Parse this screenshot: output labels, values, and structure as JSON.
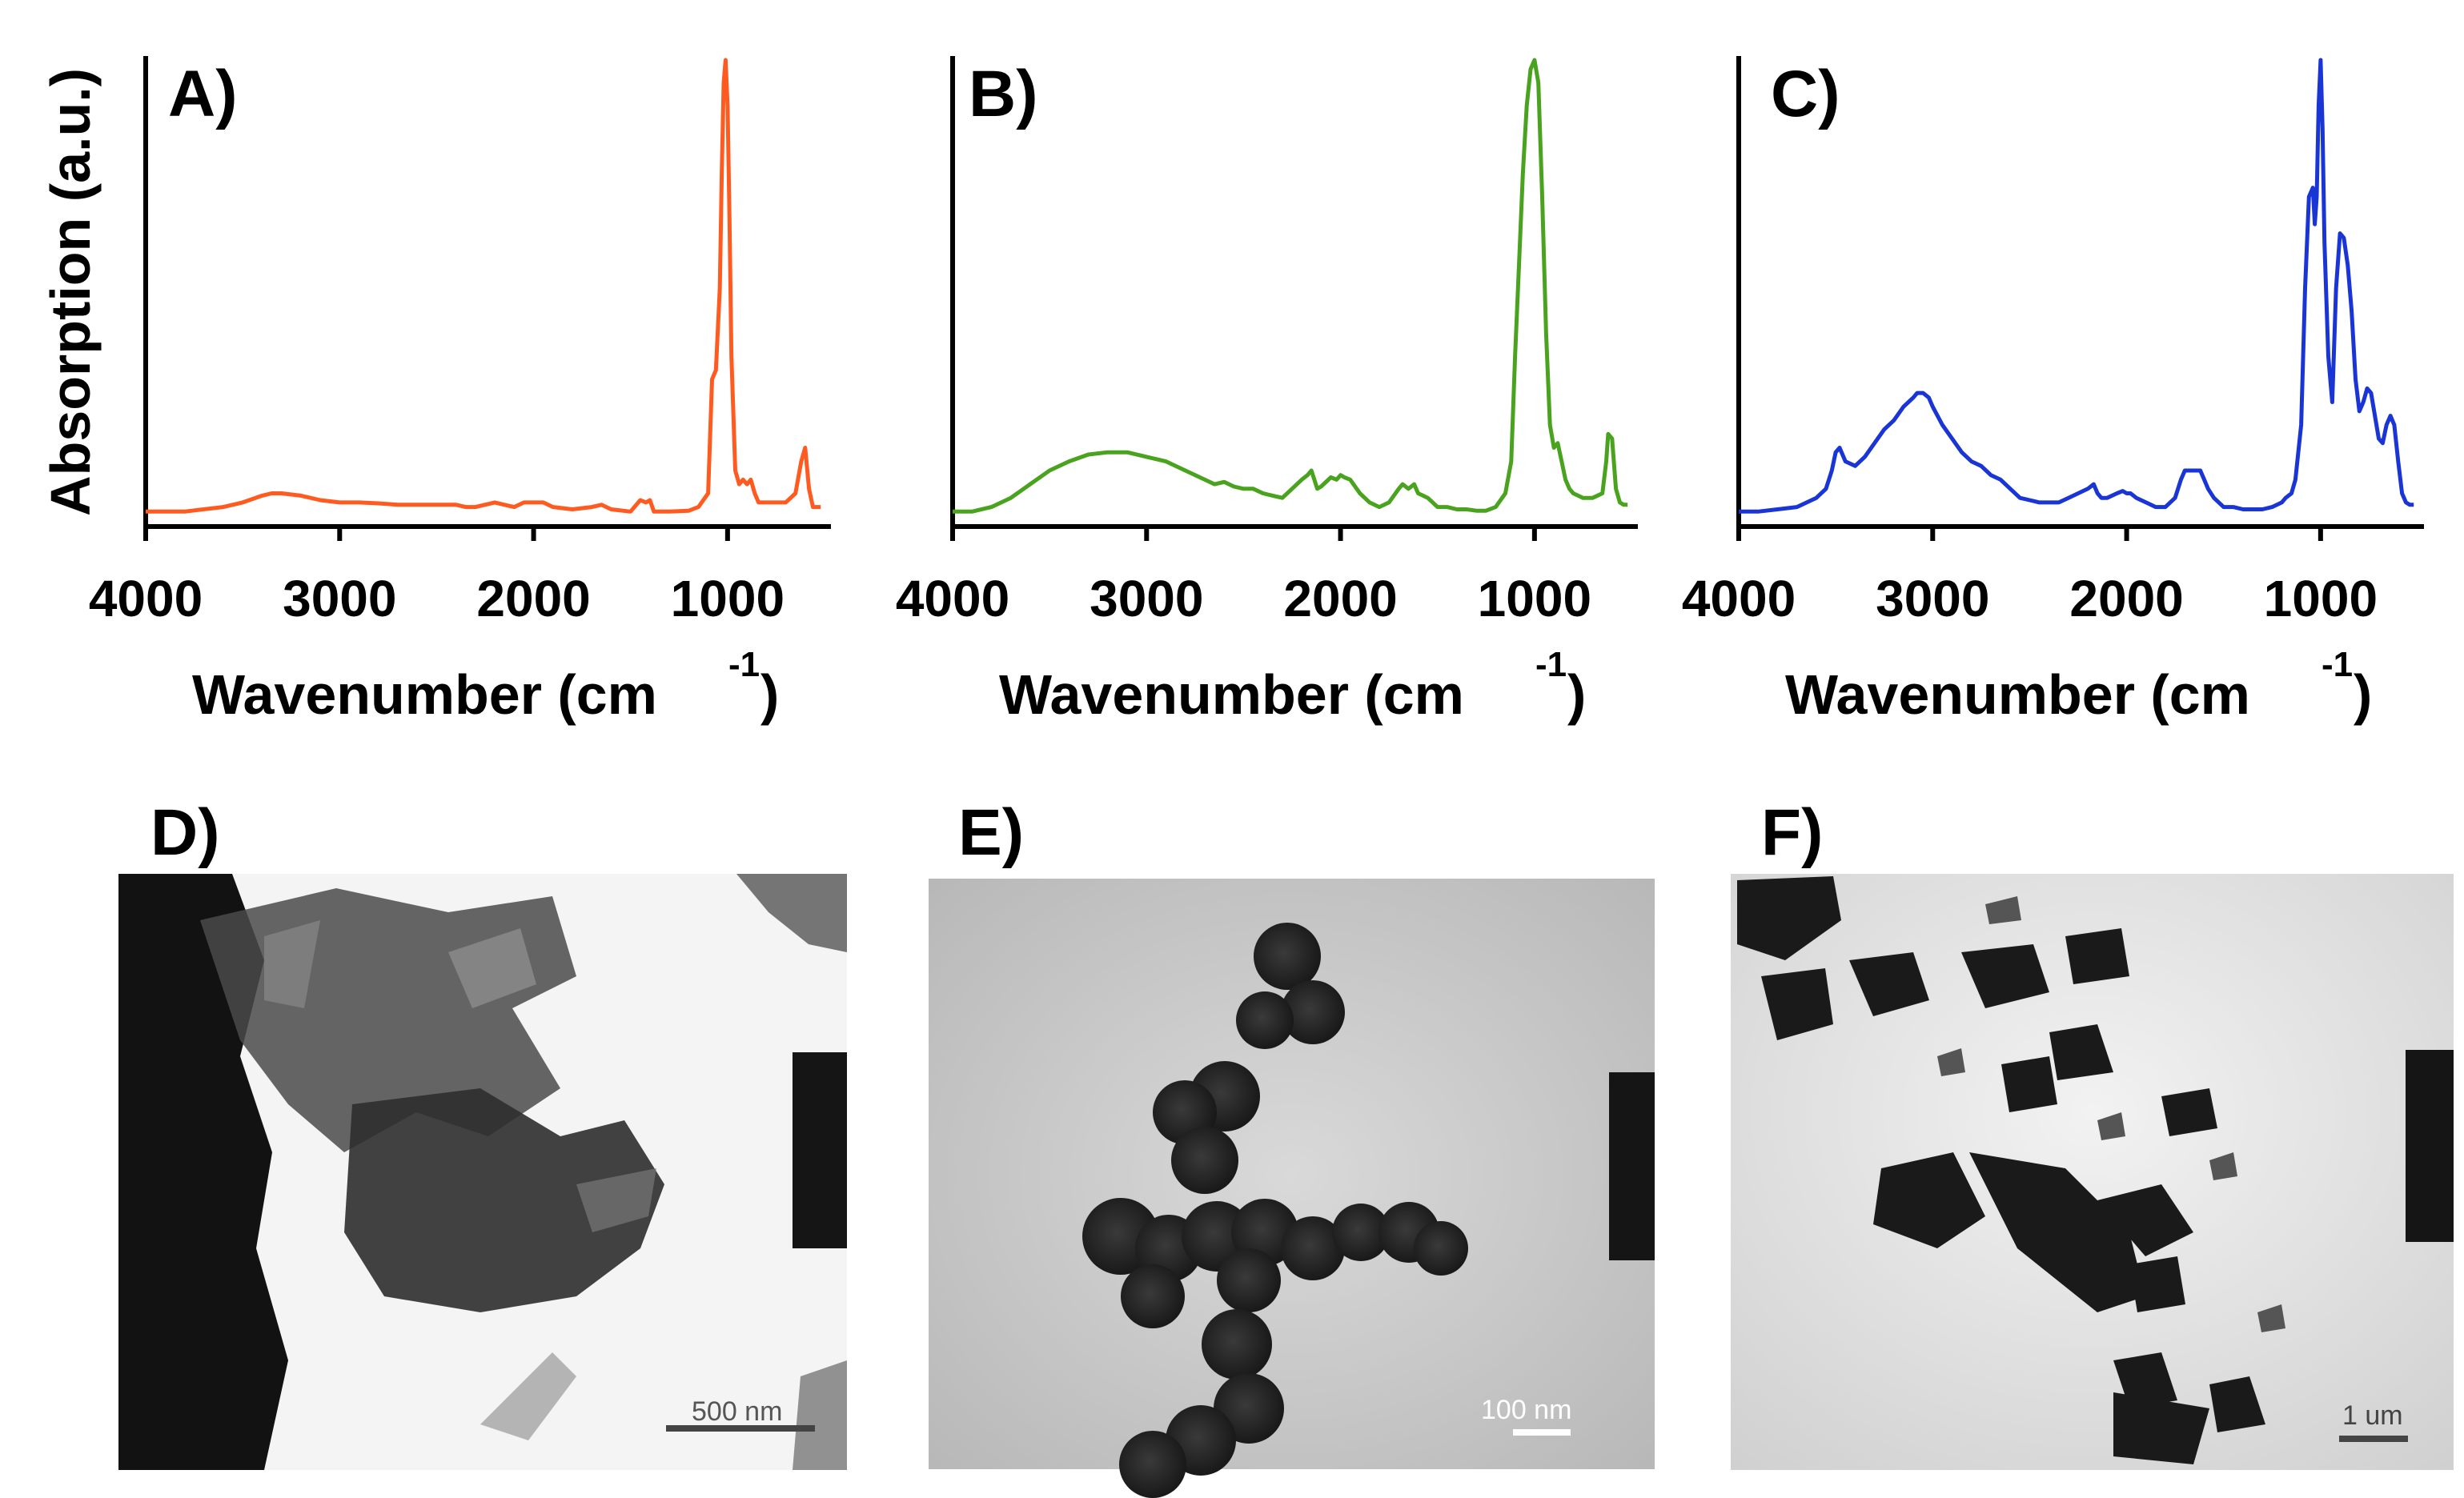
{
  "chart_data": [
    {
      "type": "line",
      "panel": "A)",
      "xlabel": "Wavenumber (cm",
      "xlabel_sup": "-1",
      "xlabel_close": ")",
      "ylabel": "Absorption (a.u.)",
      "xlim": [
        4000,
        500
      ],
      "ylim": [
        0,
        1
      ],
      "xticks": [
        4000,
        3000,
        2000,
        1000
      ],
      "color": "#ff5a1f",
      "series": [
        {
          "x": [
            4000,
            3800,
            3600,
            3500,
            3400,
            3350,
            3300,
            3200,
            3100,
            3000,
            2900,
            2800,
            2700,
            2600,
            2500,
            2400,
            2350,
            2300,
            2200,
            2150,
            2100,
            2050,
            2000,
            1950,
            1900,
            1800,
            1700,
            1650,
            1600,
            1500,
            1450,
            1420,
            1400,
            1380,
            1300,
            1200,
            1150,
            1100,
            1080,
            1060,
            1040,
            1030,
            1020,
            1010,
            1000,
            990,
            980,
            960,
            940,
            920,
            900,
            880,
            860,
            840,
            820,
            800,
            750,
            700,
            650,
            620,
            600,
            580,
            560,
            540,
            520
          ],
          "y": [
            0.01,
            0.01,
            0.02,
            0.03,
            0.045,
            0.05,
            0.05,
            0.045,
            0.035,
            0.03,
            0.03,
            0.028,
            0.025,
            0.025,
            0.025,
            0.025,
            0.02,
            0.02,
            0.03,
            0.025,
            0.02,
            0.03,
            0.03,
            0.03,
            0.02,
            0.015,
            0.02,
            0.025,
            0.015,
            0.01,
            0.035,
            0.03,
            0.035,
            0.01,
            0.01,
            0.012,
            0.02,
            0.05,
            0.3,
            0.32,
            0.5,
            0.75,
            0.95,
            1.0,
            0.9,
            0.65,
            0.35,
            0.1,
            0.07,
            0.08,
            0.07,
            0.08,
            0.05,
            0.03,
            0.03,
            0.03,
            0.03,
            0.03,
            0.05,
            0.12,
            0.15,
            0.06,
            0.02,
            0.02,
            0.02
          ]
        }
      ]
    },
    {
      "type": "line",
      "panel": "B)",
      "xlabel": "Wavenumber (cm",
      "xlabel_sup": "-1",
      "xlabel_close": ")",
      "xlim": [
        4000,
        500
      ],
      "ylim": [
        0,
        1
      ],
      "xticks": [
        4000,
        3000,
        2000,
        1000
      ],
      "color": "#4aa31e",
      "series": [
        {
          "x": [
            4000,
            3900,
            3800,
            3700,
            3600,
            3500,
            3400,
            3300,
            3200,
            3100,
            3000,
            2900,
            2800,
            2700,
            2650,
            2600,
            2550,
            2500,
            2450,
            2400,
            2350,
            2300,
            2250,
            2200,
            2170,
            2150,
            2120,
            2100,
            2050,
            2020,
            2000,
            1980,
            1950,
            1900,
            1850,
            1800,
            1750,
            1700,
            1680,
            1650,
            1620,
            1600,
            1550,
            1500,
            1450,
            1400,
            1350,
            1300,
            1250,
            1200,
            1150,
            1120,
            1100,
            1080,
            1060,
            1040,
            1020,
            1000,
            980,
            960,
            940,
            920,
            900,
            880,
            860,
            840,
            820,
            800,
            750,
            700,
            650,
            630,
            620,
            600,
            580,
            560,
            540,
            520
          ],
          "y": [
            0.01,
            0.01,
            0.02,
            0.04,
            0.07,
            0.1,
            0.12,
            0.135,
            0.14,
            0.14,
            0.13,
            0.12,
            0.1,
            0.08,
            0.07,
            0.075,
            0.065,
            0.06,
            0.06,
            0.05,
            0.045,
            0.04,
            0.06,
            0.08,
            0.09,
            0.1,
            0.06,
            0.065,
            0.085,
            0.08,
            0.09,
            0.085,
            0.08,
            0.05,
            0.03,
            0.02,
            0.03,
            0.06,
            0.07,
            0.06,
            0.07,
            0.05,
            0.04,
            0.02,
            0.02,
            0.015,
            0.015,
            0.012,
            0.012,
            0.02,
            0.05,
            0.12,
            0.35,
            0.55,
            0.75,
            0.9,
            0.98,
            1.0,
            0.95,
            0.7,
            0.4,
            0.2,
            0.15,
            0.16,
            0.12,
            0.08,
            0.06,
            0.05,
            0.04,
            0.04,
            0.05,
            0.12,
            0.18,
            0.17,
            0.06,
            0.03,
            0.025,
            0.025
          ]
        }
      ]
    },
    {
      "type": "line",
      "panel": "C)",
      "xlabel": "Wavenumber (cm",
      "xlabel_sup": "-1",
      "xlabel_close": ")",
      "xlim": [
        4000,
        500
      ],
      "ylim": [
        0,
        1
      ],
      "xticks": [
        4000,
        3000,
        2000,
        1000
      ],
      "color": "#1a35d6",
      "series": [
        {
          "x": [
            4000,
            3900,
            3800,
            3700,
            3600,
            3550,
            3520,
            3500,
            3480,
            3450,
            3400,
            3350,
            3300,
            3250,
            3200,
            3150,
            3100,
            3080,
            3050,
            3020,
            3000,
            2950,
            2900,
            2850,
            2800,
            2750,
            2700,
            2650,
            2600,
            2550,
            2500,
            2450,
            2400,
            2350,
            2300,
            2250,
            2200,
            2170,
            2150,
            2130,
            2100,
            2050,
            2020,
            2000,
            1980,
            1950,
            1900,
            1850,
            1800,
            1750,
            1720,
            1700,
            1680,
            1650,
            1620,
            1600,
            1580,
            1550,
            1500,
            1450,
            1400,
            1350,
            1300,
            1250,
            1200,
            1180,
            1150,
            1130,
            1100,
            1080,
            1060,
            1040,
            1030,
            1020,
            1010,
            1000,
            990,
            980,
            960,
            940,
            920,
            900,
            880,
            860,
            840,
            820,
            800,
            780,
            760,
            740,
            720,
            700,
            680,
            660,
            640,
            620,
            600,
            580,
            560,
            540,
            520
          ],
          "y": [
            0.01,
            0.01,
            0.015,
            0.02,
            0.04,
            0.06,
            0.1,
            0.14,
            0.15,
            0.12,
            0.11,
            0.13,
            0.16,
            0.19,
            0.21,
            0.24,
            0.26,
            0.27,
            0.27,
            0.26,
            0.24,
            0.2,
            0.17,
            0.14,
            0.12,
            0.11,
            0.09,
            0.08,
            0.06,
            0.04,
            0.035,
            0.03,
            0.03,
            0.03,
            0.04,
            0.05,
            0.06,
            0.07,
            0.05,
            0.04,
            0.04,
            0.05,
            0.055,
            0.05,
            0.05,
            0.04,
            0.03,
            0.02,
            0.02,
            0.04,
            0.08,
            0.1,
            0.1,
            0.1,
            0.1,
            0.08,
            0.06,
            0.04,
            0.02,
            0.02,
            0.015,
            0.015,
            0.015,
            0.02,
            0.03,
            0.04,
            0.05,
            0.08,
            0.2,
            0.5,
            0.7,
            0.72,
            0.64,
            0.7,
            0.9,
            1.0,
            0.85,
            0.6,
            0.35,
            0.25,
            0.5,
            0.62,
            0.61,
            0.55,
            0.45,
            0.3,
            0.23,
            0.25,
            0.28,
            0.27,
            0.22,
            0.17,
            0.16,
            0.2,
            0.22,
            0.2,
            0.12,
            0.05,
            0.03,
            0.025,
            0.025
          ]
        }
      ]
    }
  ],
  "images": [
    {
      "panel": "D)",
      "scale_bar": "500 nm"
    },
    {
      "panel": "E)",
      "scale_bar": "100 nm"
    },
    {
      "panel": "F)",
      "scale_bar": "1 um"
    }
  ]
}
